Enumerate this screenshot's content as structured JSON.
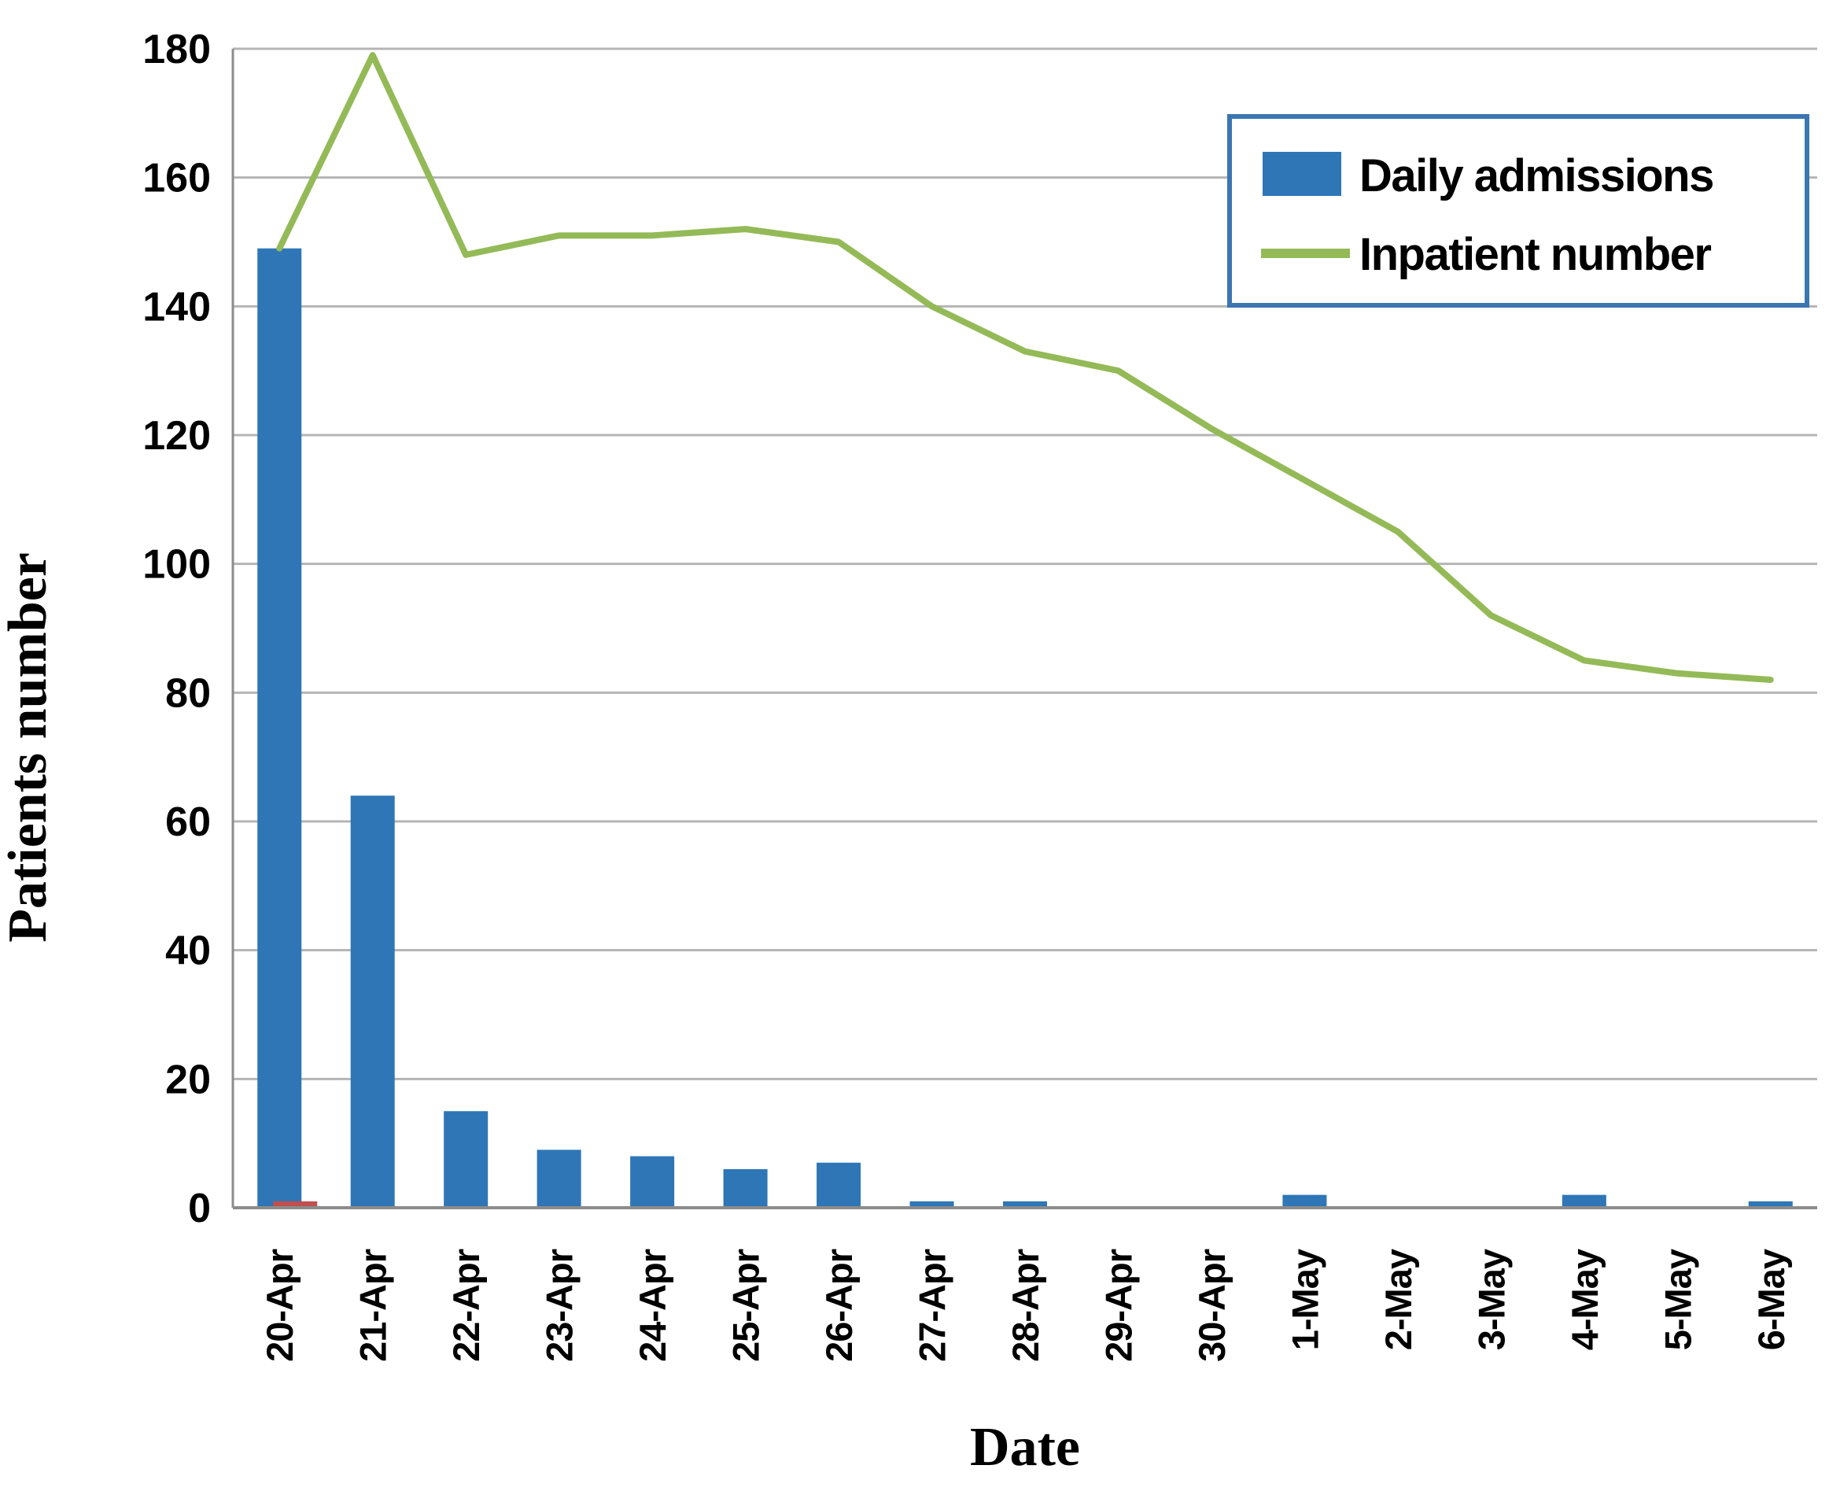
{
  "chart_data": {
    "type": "bar+line combo",
    "title": "",
    "xlabel": "Date",
    "ylabel": "Patients number",
    "ylim": [
      0,
      180
    ],
    "y_ticks": [
      0,
      20,
      40,
      60,
      80,
      100,
      120,
      140,
      160,
      180
    ],
    "grid": true,
    "legend_position": "top-right",
    "legend_entries": [
      "Daily admissions",
      "Inpatient number"
    ],
    "categories": [
      "20-Apr",
      "21-Apr",
      "22-Apr",
      "23-Apr",
      "24-Apr",
      "25-Apr",
      "26-Apr",
      "27-Apr",
      "28-Apr",
      "29-Apr",
      "30-Apr",
      "1-May",
      "2-May",
      "3-May",
      "4-May",
      "5-May",
      "6-May"
    ],
    "series": [
      {
        "name": "Daily admissions",
        "type": "bar",
        "color": "#2e76b6",
        "values": [
          149,
          64,
          15,
          9,
          8,
          6,
          7,
          1,
          1,
          0,
          0,
          2,
          0,
          0,
          2,
          0,
          1
        ]
      },
      {
        "name": "unlabeled-red-series",
        "type": "bar",
        "color": "#c0504d",
        "values": [
          1,
          0,
          0,
          0,
          0,
          0,
          0,
          0,
          0,
          0,
          0,
          0,
          0,
          0,
          0,
          0,
          0
        ]
      },
      {
        "name": "Inpatient number",
        "type": "line",
        "color": "#94ba58",
        "values": [
          149,
          179,
          148,
          151,
          151,
          152,
          150,
          140,
          133,
          130,
          121,
          113,
          105,
          92,
          85,
          83,
          82
        ]
      }
    ],
    "colors": {
      "grid_line": "#b5b5b5",
      "axis_line": "#8c8c8c",
      "legend_border": "#3b76b0",
      "bar_blue": "#2e76b6",
      "bar_red": "#c0504d",
      "line_green": "#94ba58",
      "text": "#000000",
      "background": "#ffffff"
    }
  }
}
